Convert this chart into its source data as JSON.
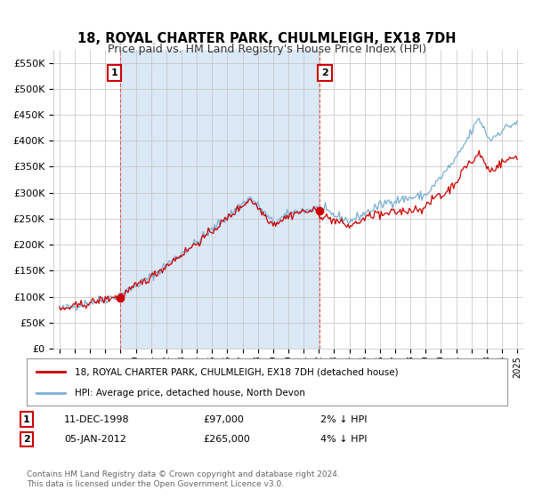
{
  "title": "18, ROYAL CHARTER PARK, CHULMLEIGH, EX18 7DH",
  "subtitle": "Price paid vs. HM Land Registry's House Price Index (HPI)",
  "legend_line1": "18, ROYAL CHARTER PARK, CHULMLEIGH, EX18 7DH (detached house)",
  "legend_line2": "HPI: Average price, detached house, North Devon",
  "footer": "Contains HM Land Registry data © Crown copyright and database right 2024.\nThis data is licensed under the Open Government Licence v3.0.",
  "purchase1_year": 1998.95,
  "purchase1_price": 97000,
  "purchase1_label": "11-DEC-1998",
  "purchase1_pct": "2% ↓ HPI",
  "purchase2_year": 2012.03,
  "purchase2_price": 265000,
  "purchase2_label": "05-JAN-2012",
  "purchase2_pct": "4% ↓ HPI",
  "ylim": [
    0,
    575000
  ],
  "yticks": [
    0,
    50000,
    100000,
    150000,
    200000,
    250000,
    300000,
    350000,
    400000,
    450000,
    500000,
    550000
  ],
  "hpi_color": "#7ab0d4",
  "price_color": "#cc0000",
  "bg_color": "#ffffff",
  "plot_bg": "#e8f0f8",
  "grid_color": "#c0c0c0",
  "vline_color": "#dd4444",
  "shade_color": "#dbe8f5"
}
